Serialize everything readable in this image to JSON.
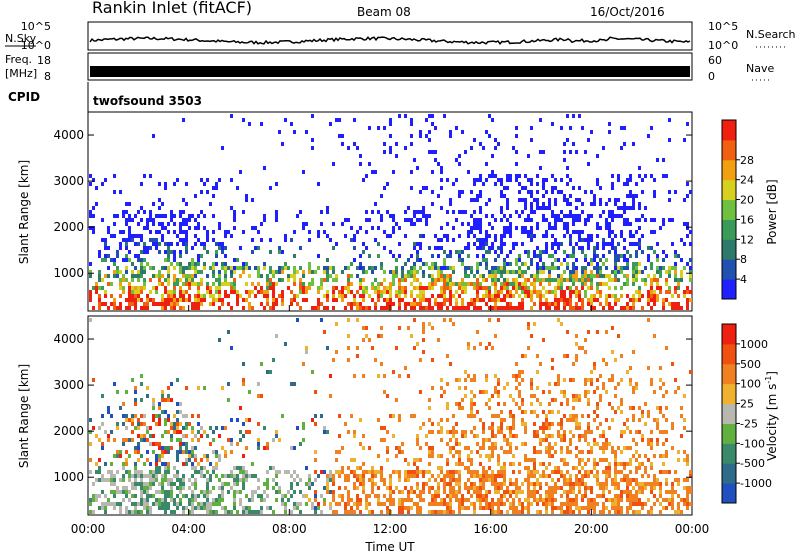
{
  "header": {
    "station": "Rankin Inlet (fitACF)",
    "beam": "Beam 08",
    "date": "16/Oct/2016"
  },
  "side_labels": {
    "nsky": "N.Sky",
    "freq_top": "Freq.",
    "freq_unit": "[MHz]",
    "cpid": "CPID",
    "nsearch": "N.Search",
    "nave": "Nave"
  },
  "cpid_value": "twofsound 3503",
  "noise_panel": {
    "left_ticks": [
      "10^5",
      "10^0"
    ],
    "right_ticks": [
      "10^5",
      "10^0"
    ]
  },
  "freq_panel": {
    "left_ticks": [
      "18",
      "8"
    ],
    "right_ticks": [
      "60",
      "0"
    ]
  },
  "chart_data": [
    {
      "type": "heatmap",
      "name": "Power",
      "ylabel": "Slant Range [km]",
      "y_ticks": [
        "1000",
        "2000",
        "3000",
        "4000"
      ],
      "ylim": [
        180,
        4500
      ],
      "colorbar": {
        "label": "Power [dB]",
        "ticks": [
          "4",
          "8",
          "12",
          "16",
          "20",
          "24",
          "28"
        ],
        "colors": [
          "#2020ff",
          "#2050b0",
          "#2e7a6a",
          "#3a9a5a",
          "#70c040",
          "#d8d020",
          "#f0a010",
          "#f06010",
          "#f02010"
        ]
      }
    },
    {
      "type": "heatmap",
      "name": "Velocity",
      "ylabel": "Slant Range [km]",
      "y_ticks": [
        "1000",
        "2000",
        "3000",
        "4000"
      ],
      "ylim": [
        180,
        4500
      ],
      "colorbar": {
        "label": "Velocity [m s^-1]",
        "ticks": [
          "1000",
          "500",
          "100",
          "25",
          "-25",
          "-100",
          "-500",
          "-1000"
        ],
        "colors": [
          "#2050c0",
          "#2e6a8a",
          "#3a8a6a",
          "#60b040",
          "#b8b8b0",
          "#f0b030",
          "#f08020",
          "#f05010",
          "#f02010"
        ]
      }
    }
  ],
  "x_axis": {
    "label": "Time UT",
    "ticks": [
      "00:00",
      "04:00",
      "08:00",
      "12:00",
      "16:00",
      "20:00",
      "00:00"
    ]
  }
}
